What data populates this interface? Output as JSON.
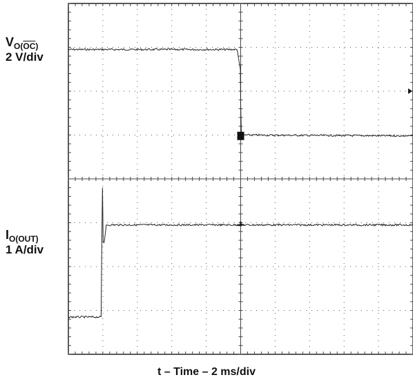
{
  "chart_data": {
    "type": "line",
    "title": "",
    "xlabel": "t – Time – 2 ms/div",
    "grid": true,
    "divisions": {
      "x": 10,
      "y": 8
    },
    "xlim": [
      0,
      20
    ],
    "x_units": "ms",
    "channels": [
      {
        "name_main": "V",
        "name_sub_pre": "O(",
        "name_sub_overline": "OC",
        "name_sub_post": ")",
        "scale": "2 V/div",
        "color": "#222222",
        "points_div": [
          [
            0,
            2.95
          ],
          [
            4.9,
            2.95
          ],
          [
            4.99,
            2.5
          ],
          [
            5.0,
            1.7
          ],
          [
            5.02,
            1.0
          ],
          [
            10,
            0.98
          ]
        ]
      },
      {
        "name_main": "I",
        "name_sub": "O(OUT)",
        "scale": "1 A/div",
        "color": "#222222",
        "points_div": [
          [
            0,
            -3.15
          ],
          [
            0.95,
            -3.15
          ],
          [
            0.97,
            -1.45
          ],
          [
            0.99,
            -0.2
          ],
          [
            1.01,
            -1.45
          ],
          [
            1.04,
            -1.45
          ],
          [
            1.1,
            -1.05
          ],
          [
            10,
            -1.05
          ]
        ]
      }
    ],
    "markers": [
      {
        "name": "trigger-level-marker",
        "x_div": 10,
        "y_div": 2.0
      }
    ]
  }
}
